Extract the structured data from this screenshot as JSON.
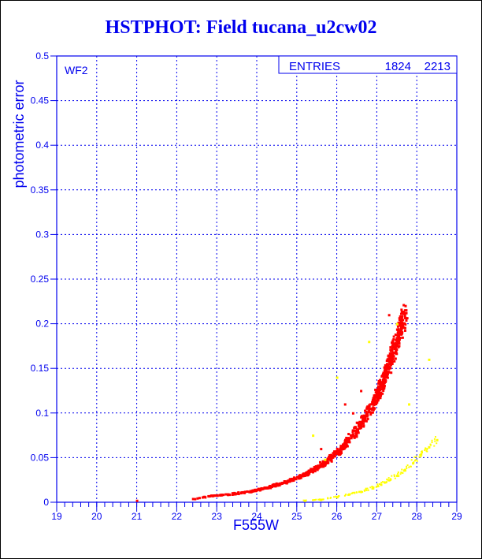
{
  "chart_data": {
    "type": "scatter",
    "title": "HSTPHOT: Field tucana_u2cw02",
    "xlabel": "F555W",
    "ylabel": "photometric error",
    "xlim": [
      19,
      29
    ],
    "ylim": [
      0,
      0.5
    ],
    "x_ticks": [
      "19",
      "20",
      "21",
      "22",
      "23",
      "24",
      "25",
      "26",
      "27",
      "28",
      "29"
    ],
    "y_ticks": [
      "0",
      "0.05",
      "0.1",
      "0.15",
      "0.2",
      "0.25",
      "0.3",
      "0.35",
      "0.4",
      "0.45",
      "0.5"
    ],
    "grid": true,
    "panel_label": "WF2",
    "stats_box": {
      "label": "ENTRIES",
      "values": [
        "1824",
        "2213"
      ]
    },
    "colors": {
      "axis": "#0000ee",
      "red": "#ff0000",
      "yellow": "#ffff00"
    },
    "series": [
      {
        "name": "red",
        "color": "#ff0000",
        "points": [
          [
            21.0,
            0.002
          ],
          [
            22.4,
            0.004
          ],
          [
            22.8,
            0.007
          ],
          [
            23.0,
            0.008
          ],
          [
            23.3,
            0.009
          ],
          [
            23.6,
            0.011
          ],
          [
            23.9,
            0.013
          ],
          [
            24.1,
            0.015
          ],
          [
            24.3,
            0.017
          ],
          [
            24.5,
            0.02
          ],
          [
            24.7,
            0.023
          ],
          [
            24.9,
            0.026
          ],
          [
            25.1,
            0.03
          ],
          [
            25.3,
            0.034
          ],
          [
            25.5,
            0.039
          ],
          [
            25.7,
            0.045
          ],
          [
            25.9,
            0.052
          ],
          [
            26.1,
            0.06
          ],
          [
            26.3,
            0.07
          ],
          [
            26.5,
            0.082
          ],
          [
            26.7,
            0.095
          ],
          [
            26.9,
            0.11
          ],
          [
            27.0,
            0.12
          ],
          [
            27.1,
            0.13
          ],
          [
            27.2,
            0.142
          ],
          [
            27.3,
            0.155
          ],
          [
            27.4,
            0.168
          ],
          [
            27.5,
            0.183
          ],
          [
            27.6,
            0.198
          ],
          [
            27.7,
            0.212
          ],
          [
            26.4,
            0.1
          ],
          [
            26.6,
            0.125
          ],
          [
            27.3,
            0.21
          ],
          [
            26.2,
            0.11
          ],
          [
            25.6,
            0.06
          ]
        ]
      },
      {
        "name": "yellow",
        "color": "#ffff00",
        "points": [
          [
            25.2,
            0.002
          ],
          [
            25.6,
            0.003
          ],
          [
            26.0,
            0.006
          ],
          [
            26.3,
            0.009
          ],
          [
            26.6,
            0.012
          ],
          [
            26.9,
            0.016
          ],
          [
            27.1,
            0.02
          ],
          [
            27.3,
            0.025
          ],
          [
            27.5,
            0.03
          ],
          [
            27.7,
            0.036
          ],
          [
            27.9,
            0.044
          ],
          [
            28.1,
            0.054
          ],
          [
            28.3,
            0.062
          ],
          [
            28.5,
            0.07
          ],
          [
            27.5,
            0.2
          ],
          [
            26.8,
            0.18
          ],
          [
            28.3,
            0.16
          ],
          [
            25.4,
            0.075
          ],
          [
            26.0,
            0.14
          ],
          [
            27.8,
            0.11
          ],
          [
            25.7,
            0.048
          ]
        ]
      }
    ]
  }
}
